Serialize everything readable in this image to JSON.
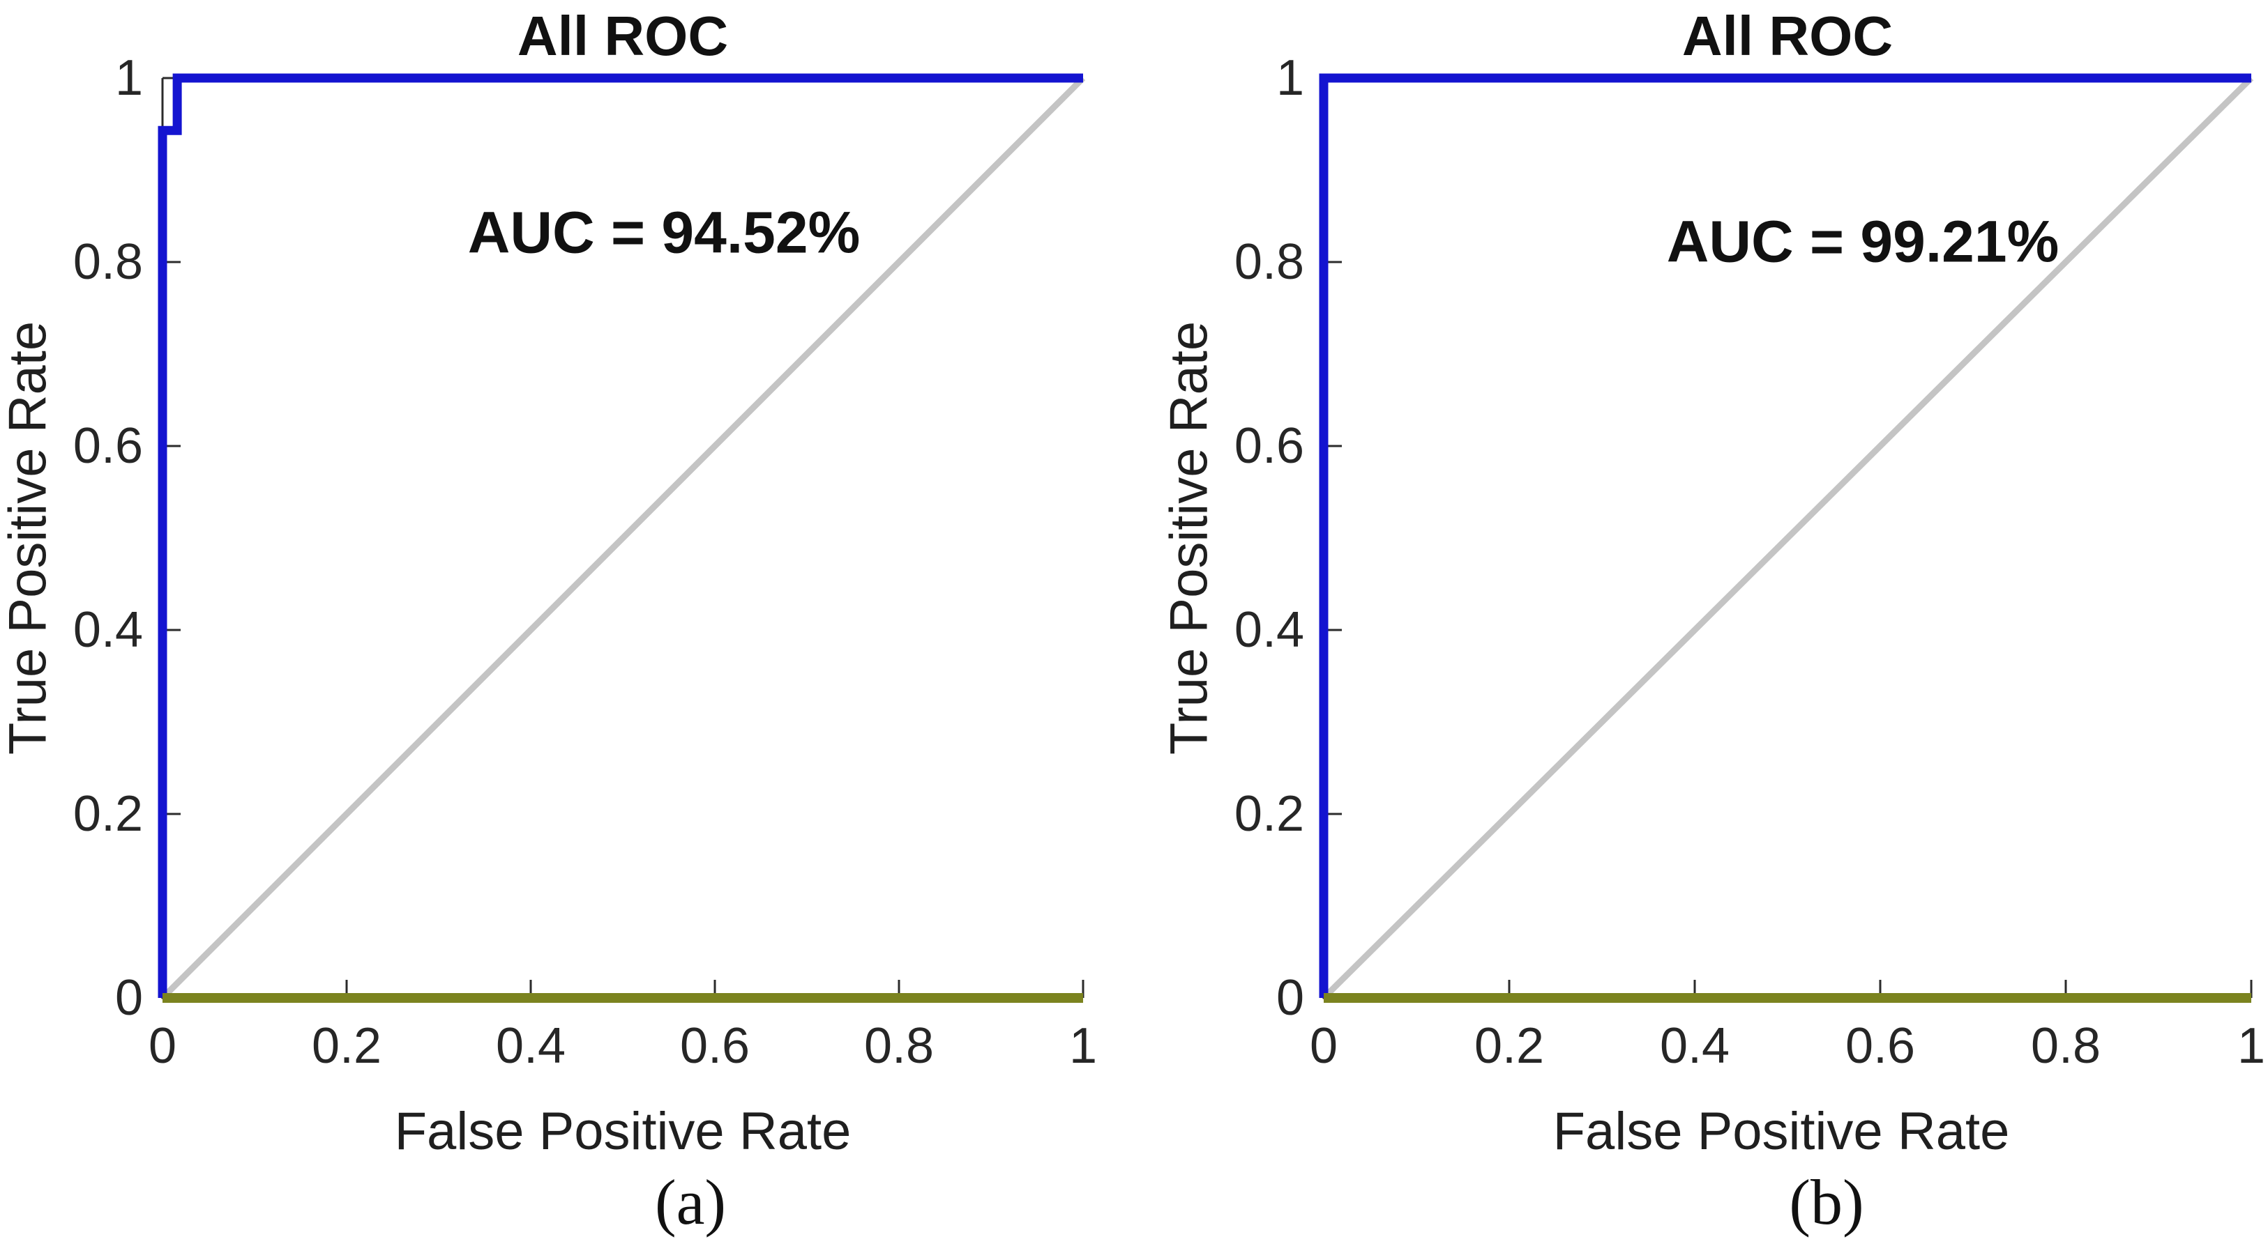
{
  "figure": {
    "background": "#ffffff",
    "colors": {
      "roc_curve": "#1414d0",
      "chance_diagonal": "#c4c4c4",
      "baseline": "#7b831f",
      "axis": "#2b2b2b",
      "text": "#111111"
    }
  },
  "chart_data": [
    {
      "type": "line",
      "title": "All ROC",
      "xlabel": "False Positive Rate",
      "ylabel": "True Positive Rate",
      "caption": "(a)",
      "xlim": [
        0,
        1
      ],
      "ylim": [
        0,
        1
      ],
      "grid": false,
      "legend": "none",
      "xticks": [
        0,
        0.2,
        0.4,
        0.6,
        0.8,
        1
      ],
      "xtick_labels": [
        "0",
        "0.2",
        "0.4",
        "0.6",
        "0.8",
        "1"
      ],
      "yticks": [
        0,
        0.2,
        0.4,
        0.6,
        0.8,
        1
      ],
      "ytick_labels": [
        "0",
        "0.2",
        "0.4",
        "0.6",
        "0.8",
        "1"
      ],
      "annotation": {
        "text": "AUC = 94.52%",
        "x": 0.545,
        "y": 0.832
      },
      "auc_percent": 94.52,
      "series": [
        {
          "name": "chance-diagonal",
          "color": "#c4c4c4",
          "width": 9,
          "points": [
            [
              0,
              0
            ],
            [
              1,
              1
            ]
          ]
        },
        {
          "name": "roc-curve",
          "color": "#1414d0",
          "width": 13,
          "points": [
            [
              0,
              0
            ],
            [
              0,
              0.943
            ],
            [
              0.016,
              0.943
            ],
            [
              0.016,
              1
            ],
            [
              1,
              1
            ]
          ]
        },
        {
          "name": "baseline",
          "color": "#7b831f",
          "width": 14,
          "points": [
            [
              0,
              0
            ],
            [
              1,
              0
            ]
          ]
        }
      ]
    },
    {
      "type": "line",
      "title": "All ROC",
      "xlabel": "False Positive Rate",
      "ylabel": "True Positive Rate",
      "caption": "(b)",
      "xlim": [
        0,
        1
      ],
      "ylim": [
        0,
        1
      ],
      "grid": false,
      "legend": "none",
      "xticks": [
        0,
        0.2,
        0.4,
        0.6,
        0.8,
        1
      ],
      "xtick_labels": [
        "0",
        "0.2",
        "0.4",
        "0.6",
        "0.8",
        "1"
      ],
      "yticks": [
        0,
        0.2,
        0.4,
        0.6,
        0.8,
        1
      ],
      "ytick_labels": [
        "0",
        "0.2",
        "0.4",
        "0.6",
        "0.8",
        "1"
      ],
      "annotation": {
        "text": "AUC = 99.21%",
        "x": 0.581,
        "y": 0.822
      },
      "auc_percent": 99.21,
      "series": [
        {
          "name": "chance-diagonal",
          "color": "#c4c4c4",
          "width": 9,
          "points": [
            [
              0,
              0
            ],
            [
              1,
              1
            ]
          ]
        },
        {
          "name": "roc-curve",
          "color": "#1414d0",
          "width": 13,
          "points": [
            [
              0,
              0
            ],
            [
              0,
              1
            ],
            [
              1,
              1
            ]
          ]
        },
        {
          "name": "baseline",
          "color": "#7b831f",
          "width": 14,
          "points": [
            [
              0,
              0
            ],
            [
              1,
              0
            ]
          ]
        }
      ]
    }
  ]
}
